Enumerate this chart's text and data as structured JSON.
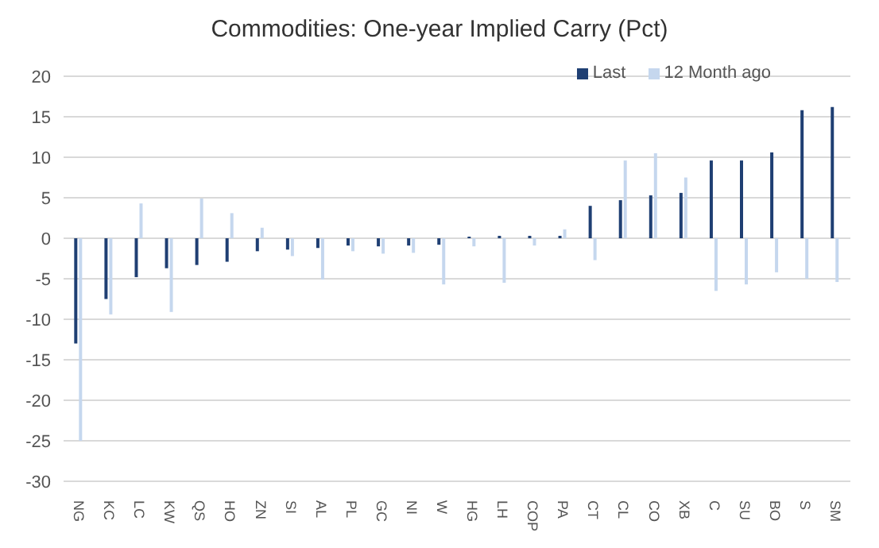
{
  "chart_data": {
    "type": "bar",
    "title": "Commodities: One-year Implied Carry (Pct)",
    "categories": [
      "NG",
      "KC",
      "LC",
      "KW",
      "QS",
      "HO",
      "ZN",
      "SI",
      "AL",
      "PL",
      "GC",
      "NI",
      "W",
      "HG",
      "LH",
      "COP",
      "PA",
      "CT",
      "CL",
      "CO",
      "XB",
      "C",
      "SU",
      "BO",
      "S",
      "SM"
    ],
    "series": [
      {
        "name": "Last",
        "color": "#1f3f73",
        "values": [
          -13,
          -7.5,
          -4.8,
          -3.7,
          -3.3,
          -2.9,
          -1.6,
          -1.4,
          -1.2,
          -0.9,
          -1,
          -0.9,
          -0.8,
          0.2,
          0.3,
          0.3,
          0.3,
          4,
          4.7,
          5.3,
          5.6,
          9.6,
          9.6,
          10.6,
          15.8,
          16.2
        ]
      },
      {
        "name": "12 Month ago",
        "color": "#c5d7ee",
        "values": [
          -25,
          -9.4,
          4.3,
          -9.1,
          4.9,
          3.1,
          1.3,
          -2.2,
          -5.1,
          -1.6,
          -1.9,
          -1.8,
          -5.7,
          -1,
          -5.5,
          -0.9,
          1.1,
          -2.7,
          9.6,
          10.5,
          7.5,
          -6.5,
          -5.7,
          -4.2,
          -5,
          -5.4
        ]
      }
    ],
    "ylim": [
      -30,
      20
    ],
    "yticks": [
      -30,
      -25,
      -20,
      -15,
      -10,
      -5,
      0,
      5,
      10,
      15,
      20
    ],
    "grid": "y",
    "legend": "top right"
  }
}
